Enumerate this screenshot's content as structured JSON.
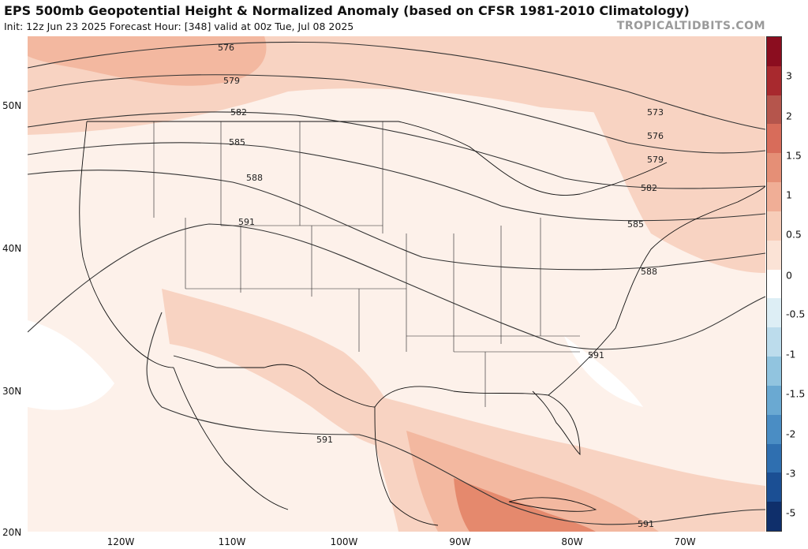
{
  "header": {
    "title": "EPS 500mb Geopotential Height & Normalized Anomaly (based on CFSR 1981-2010 Climatology)",
    "subtitle": "Init: 12z Jun 23 2025   Forecast Hour: [348]   valid at 00z Tue, Jul 08 2025",
    "watermark": "TROPICALTIDBITS.COM"
  },
  "map": {
    "latitude_labels": [
      "50N",
      "40N",
      "30N",
      "20N"
    ],
    "longitude_labels": [
      "120W",
      "110W",
      "100W",
      "90W",
      "80W",
      "70W"
    ],
    "contour_labels": [
      "576",
      "579",
      "582",
      "585",
      "588",
      "591",
      "573",
      "576",
      "579",
      "582",
      "585",
      "588",
      "591",
      "591",
      "591"
    ],
    "anomaly_colors": {
      "strong_positive": "#e5896d",
      "moderate_positive": "#f3b8a0",
      "weak_positive": "#f8d3c2",
      "near_zero": "#fdf1ea",
      "neutral": "#ffffff"
    }
  },
  "colorbar": {
    "tick_labels": [
      "3",
      "2",
      "1.5",
      "1",
      "0.5",
      "0",
      "-0.5",
      "-1",
      "-1.5",
      "-2",
      "-3",
      "-5"
    ],
    "colors": [
      "#8b0d1f",
      "#a8292e",
      "#b5554c",
      "#d86c5a",
      "#e58f76",
      "#f0ae96",
      "#f7cdb9",
      "#fbe3d6",
      "#ffffff",
      "#ddeef5",
      "#bcdcec",
      "#91c4df",
      "#6aa9d2",
      "#4a8dc4",
      "#2f6fb0",
      "#1b4f94",
      "#0f2f6b"
    ]
  }
}
